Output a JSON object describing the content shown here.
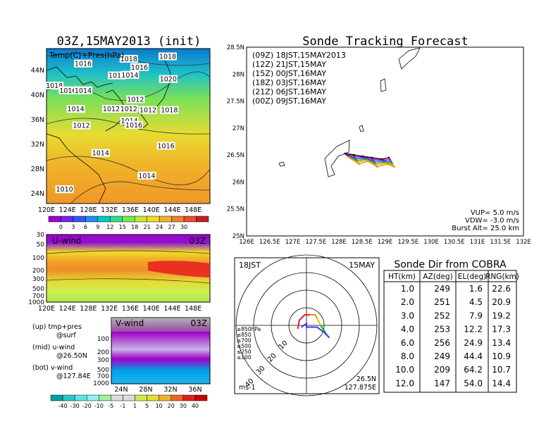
{
  "left": {
    "title": "03Z,15MAY2013 (init)",
    "map": {
      "label": "Temp(C)+Pres(hPa)",
      "x_ticks": [
        "120E",
        "124E",
        "128E",
        "132E",
        "136E",
        "140E",
        "144E",
        "148E"
      ],
      "y_ticks": [
        "24N",
        "28N",
        "32N",
        "36N",
        "40N",
        "44N"
      ],
      "isobar_labels": [
        {
          "text": "1018",
          "lon": 134.6,
          "lat": 46.0
        },
        {
          "text": "1016",
          "lon": 126.5,
          "lat": 45.2
        },
        {
          "text": "1016",
          "lon": 132.5,
          "lat": 43.2
        },
        {
          "text": "1014",
          "lon": 134.8,
          "lat": 43.3
        },
        {
          "text": "1016",
          "lon": 136.5,
          "lat": 44.6
        },
        {
          "text": "1018",
          "lon": 141.5,
          "lat": 46.4
        },
        {
          "text": "1020",
          "lon": 141.6,
          "lat": 42.6
        },
        {
          "text": "1018",
          "lon": 121.4,
          "lat": 41.5
        },
        {
          "text": "1016",
          "lon": 123.8,
          "lat": 40.7
        },
        {
          "text": "1014",
          "lon": 126.5,
          "lat": 40.7
        },
        {
          "text": "1012",
          "lon": 135.8,
          "lat": 39.2
        },
        {
          "text": "1012",
          "lon": 131.5,
          "lat": 37.6
        },
        {
          "text": "1012",
          "lon": 134.6,
          "lat": 37.6
        },
        {
          "text": "1012",
          "lon": 138.0,
          "lat": 37.4
        },
        {
          "text": "1018",
          "lon": 141.8,
          "lat": 37.4
        },
        {
          "text": "1014",
          "lon": 125.2,
          "lat": 37.6
        },
        {
          "text": "1012",
          "lon": 126.2,
          "lat": 34.8
        },
        {
          "text": "1014",
          "lon": 134.7,
          "lat": 35.6
        },
        {
          "text": "1016",
          "lon": 135.5,
          "lat": 34.9
        },
        {
          "text": "1016",
          "lon": 141.2,
          "lat": 31.4
        },
        {
          "text": "1014",
          "lon": 129.6,
          "lat": 30.2
        },
        {
          "text": "1014",
          "lon": 137.8,
          "lat": 26.4
        },
        {
          "text": "1010",
          "lon": 123.2,
          "lat": 24.1
        }
      ],
      "colorbar_labels": [
        "0",
        "3",
        "6",
        "9",
        "12",
        "15",
        "18",
        "21",
        "24",
        "27",
        "30"
      ],
      "colorbar_colors": [
        "#a000c8",
        "#6e28e6",
        "#3c50fa",
        "#1e8cf0",
        "#00c8c8",
        "#32dc8c",
        "#78e650",
        "#c8e632",
        "#f0dc28",
        "#f0b428",
        "#f08228",
        "#e65028",
        "#c81e1e"
      ]
    },
    "uwind": {
      "label": "U-wind",
      "time": "03Z",
      "y_ticks": [
        "30",
        "50",
        "100",
        "200",
        "300",
        "500",
        "700",
        "1000"
      ],
      "x_ticks": [
        "120E",
        "124E",
        "128E",
        "132E",
        "136E",
        "140E",
        "144E",
        "148E"
      ]
    },
    "vwind": {
      "label": "V-wind",
      "time": "03Z",
      "y_ticks": [
        "100",
        "200",
        "300",
        "500",
        "700",
        "1000"
      ],
      "x_ticks": [
        "24N",
        "28N",
        "32N",
        "36N"
      ]
    },
    "legend_text": [
      {
        "a": "(up) tmp+pres",
        "b": "@surf"
      },
      {
        "a": "(mid) u-wind",
        "b": "@26.50N"
      },
      {
        "a": "(bot) v-wind",
        "b": "@127.84E"
      }
    ],
    "wind_colorbar_labels": [
      "-40",
      "-30",
      "-20",
      "-10",
      "-5",
      "-1",
      "1",
      "5",
      "10",
      "20",
      "30",
      "40"
    ],
    "wind_colorbar_colors": [
      "#00a0a0",
      "#28c8c8",
      "#5ae6e6",
      "#96f0f0",
      "#a0f0a0",
      "#dcdcdc",
      "#dcdcdc",
      "#c8f050",
      "#e6dc32",
      "#f0b428",
      "#f06428",
      "#e61e1e",
      "#c80000"
    ]
  },
  "right": {
    "title": "Sonde Tracking Forecast",
    "x_ticks": [
      "126E",
      "126.5E",
      "127E",
      "127.5E",
      "128E",
      "128.5E",
      "129E",
      "129.5E",
      "130E",
      "130.5E",
      "131E",
      "131.5E",
      "132E"
    ],
    "y_ticks": [
      "25N",
      "25.5N",
      "26N",
      "26.5N",
      "27N",
      "27.5N",
      "28N",
      "28.5N"
    ],
    "legend": [
      {
        "text": "(09Z)  18JST,15MAY2013",
        "color": "#000000"
      },
      {
        "text": "(12Z)  21JST,15MAY",
        "color": "#a000c8"
      },
      {
        "text": "(15Z)  00JST,16MAY",
        "color": "#3c3cff"
      },
      {
        "text": "(18Z)  03JST,16MAY",
        "color": "#00b400"
      },
      {
        "text": "(21Z)  06JST,16MAY",
        "color": "#f0a000"
      },
      {
        "text": "(00Z)  09JST,16MAY",
        "color": "#f08c28"
      }
    ],
    "params": [
      {
        "text": "VUP=  5.0  m/s"
      },
      {
        "text": "VDW=  -3.0  m/s"
      },
      {
        "text": "Burst Alt=  25.0  km"
      }
    ],
    "track_colors": [
      "#000000",
      "#a000c8",
      "#3c3cff",
      "#00b400",
      "#f0a000",
      "#f08c28"
    ]
  },
  "polar": {
    "left_label": "18JST",
    "right_label": "15MAY",
    "unit": "ms-1",
    "lat": "26.5N",
    "lon": "127.875E",
    "ring_labels": [
      "10",
      "20",
      "30",
      "40"
    ],
    "levels": [
      {
        "text": "≥850hPa",
        "color": "#e61e1e"
      },
      {
        "text": "≤850",
        "color": "#f08c28"
      },
      {
        "text": "≤700",
        "color": "#dcc800"
      },
      {
        "text": "≤500",
        "color": "#00b400"
      },
      {
        "text": "≤250",
        "color": "#00c8c8"
      },
      {
        "text": "≤100",
        "color": "#3c3cff"
      }
    ],
    "hodograph": [
      {
        "color": "#e61e1e",
        "pts": [
          [
            -5,
            -2
          ],
          [
            -4,
            3
          ],
          [
            -1,
            6
          ],
          [
            2,
            6
          ]
        ]
      },
      {
        "color": "#f08c28",
        "pts": [
          [
            2,
            6
          ],
          [
            5,
            6
          ],
          [
            6,
            4
          ]
        ]
      },
      {
        "color": "#dcc800",
        "pts": [
          [
            6,
            4
          ],
          [
            7,
            2
          ],
          [
            8,
            0
          ]
        ]
      },
      {
        "color": "#00b400",
        "pts": [
          [
            8,
            0
          ],
          [
            10,
            -3
          ],
          [
            12,
            -6
          ]
        ]
      },
      {
        "color": "#00c8c8",
        "pts": [
          [
            12,
            -6
          ],
          [
            13,
            -7
          ]
        ]
      },
      {
        "color": "#3c3cff",
        "pts": [
          [
            13,
            -7
          ],
          [
            10,
            -4
          ],
          [
            6,
            -1
          ],
          [
            0,
            -1
          ],
          [
            0,
            1
          ],
          [
            -3,
            -1
          ]
        ]
      }
    ]
  },
  "table": {
    "title": "Sonde Dir from COBRA",
    "headers": [
      "HT(km)",
      "AZ(deg)",
      "EL(deg)",
      "RNG(km)"
    ],
    "rows": [
      [
        "1.0",
        "249",
        "1.6",
        "22.6"
      ],
      [
        "2.0",
        "251",
        "4.5",
        "20.9"
      ],
      [
        "3.0",
        "252",
        "7.9",
        "19.2"
      ],
      [
        "4.0",
        "253",
        "12.2",
        "17.3"
      ],
      [
        "6.0",
        "256",
        "24.9",
        "13.4"
      ],
      [
        "8.0",
        "249",
        "44.4",
        "10.9"
      ],
      [
        "10.0",
        "209",
        "64.2",
        "10.7"
      ],
      [
        "12.0",
        "147",
        "54.0",
        "14.4"
      ]
    ]
  }
}
